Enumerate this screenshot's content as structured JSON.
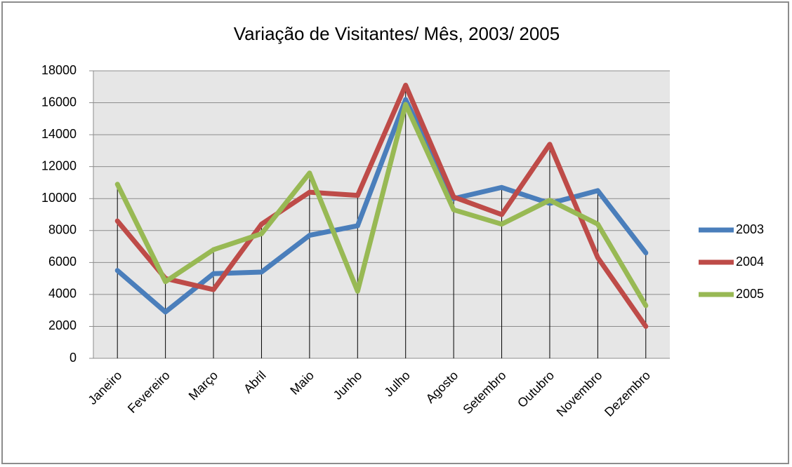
{
  "chart_data": {
    "type": "line",
    "title": "Variação de Visitantes/ Mês, 2003/ 2005",
    "categories": [
      "Janeiro",
      "Fevereiro",
      "Março",
      "Abril",
      "Maio",
      "Junho",
      "Julho",
      "Agosto",
      "Setembro",
      "Outubro",
      "Novembro",
      "Dezembro"
    ],
    "series": [
      {
        "name": "2003",
        "color": "#4a7ebb",
        "values": [
          5500,
          2900,
          5300,
          5400,
          7700,
          8300,
          16200,
          10000,
          10700,
          9700,
          10500,
          6600
        ]
      },
      {
        "name": "2004",
        "color": "#be4b48",
        "values": [
          8600,
          5000,
          4300,
          8400,
          10400,
          10200,
          17100,
          10100,
          9000,
          13400,
          6300,
          2000
        ]
      },
      {
        "name": "2005",
        "color": "#98b954",
        "values": [
          10900,
          4800,
          6800,
          7800,
          11600,
          4200,
          15900,
          9300,
          8400,
          9900,
          8400,
          3300
        ]
      }
    ],
    "ylim": [
      0,
      18000
    ],
    "yticks": [
      0,
      2000,
      4000,
      6000,
      8000,
      10000,
      12000,
      14000,
      16000,
      18000
    ],
    "grid": true,
    "drop_lines": true,
    "legend": "right"
  }
}
